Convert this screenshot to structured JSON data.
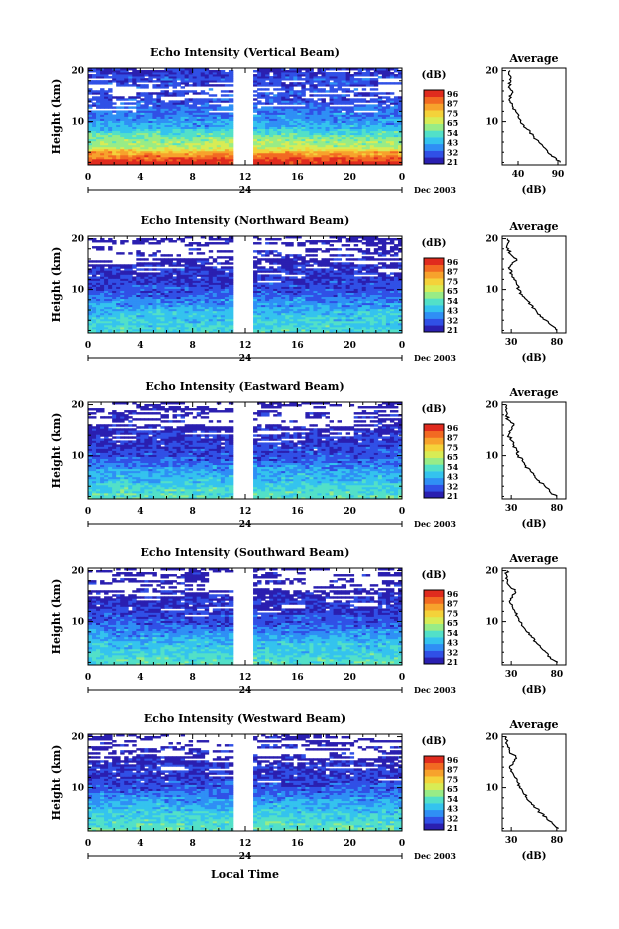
{
  "figure": {
    "xlabel": "Local Time",
    "date_label": "Dec 2003",
    "day_label": "24",
    "colorbar_unit": "(dB)",
    "colorbar_ticks": [
      "96",
      "87",
      "75",
      "65",
      "54",
      "43",
      "32",
      "21"
    ],
    "height_ticks": [
      "20",
      "10"
    ],
    "time_ticks": [
      "0",
      "4",
      "8",
      "12",
      "16",
      "20",
      "0"
    ],
    "ylabel": "Height (km)",
    "avg_title": "Average",
    "avg_unit": "(dB)",
    "colors": {
      "scale": [
        "#2a1fb0",
        "#3050e6",
        "#2f8ff5",
        "#34c3ee",
        "#52e0c8",
        "#98ec86",
        "#d8ec55",
        "#f4d23a",
        "#f7a22c",
        "#f26a22",
        "#e02b1e"
      ],
      "background": "#ffffff",
      "ink": "#000000"
    }
  },
  "chart_data": [
    {
      "type": "heatmap",
      "title": "Echo Intensity (Vertical Beam)",
      "xlabel": "",
      "ylabel": "Height (km)",
      "xlim": [
        0,
        24
      ],
      "ylim": [
        1.5,
        20.5
      ],
      "zlim": [
        21,
        96
      ],
      "zunit": "dB",
      "gap": [
        11.1,
        12.7
      ],
      "profile": [
        [
          2,
          95
        ],
        [
          3,
          85
        ],
        [
          4,
          78
        ],
        [
          5,
          62
        ],
        [
          6,
          60
        ],
        [
          7,
          55
        ],
        [
          8,
          50
        ],
        [
          9,
          42
        ],
        [
          10,
          40
        ],
        [
          11,
          37
        ],
        [
          12,
          35
        ],
        [
          13,
          33
        ],
        [
          14,
          30
        ],
        [
          15,
          28
        ],
        [
          16,
          30
        ],
        [
          17,
          27
        ],
        [
          18,
          31
        ],
        [
          19,
          28
        ],
        [
          20,
          26
        ]
      ],
      "average": {
        "title": "Average",
        "xlabel": "(dB)",
        "xticks": [
          "40",
          "90"
        ],
        "xlim": [
          20,
          100
        ],
        "ylim": [
          1.5,
          20.5
        ],
        "yticks": [
          "20",
          "10"
        ],
        "points": [
          [
            2,
            93
          ],
          [
            3,
            86
          ],
          [
            4,
            77
          ],
          [
            5,
            72
          ],
          [
            6,
            66
          ],
          [
            7,
            60
          ],
          [
            8,
            55
          ],
          [
            9,
            47
          ],
          [
            10,
            43
          ],
          [
            11,
            40
          ],
          [
            12,
            37
          ],
          [
            13,
            33
          ],
          [
            14,
            30
          ],
          [
            15,
            29
          ],
          [
            16,
            33
          ],
          [
            17,
            29
          ],
          [
            18,
            31
          ],
          [
            19,
            30
          ],
          [
            20,
            30
          ]
        ]
      }
    },
    {
      "type": "heatmap",
      "title": "Echo Intensity (Northward Beam)",
      "xlabel": "",
      "ylabel": "Height (km)",
      "xlim": [
        0,
        24
      ],
      "ylim": [
        1.5,
        20.5
      ],
      "zlim": [
        21,
        96
      ],
      "zunit": "dB",
      "gap": [
        11.1,
        12.7
      ],
      "profile": [
        [
          2,
          50
        ],
        [
          3,
          48
        ],
        [
          4,
          47
        ],
        [
          5,
          45
        ],
        [
          6,
          43
        ],
        [
          7,
          40
        ],
        [
          8,
          37
        ],
        [
          9,
          33
        ],
        [
          10,
          30
        ],
        [
          11,
          30
        ],
        [
          12,
          27
        ],
        [
          13,
          26
        ],
        [
          14,
          27
        ],
        [
          15,
          24
        ],
        [
          16,
          22
        ],
        [
          17,
          23
        ],
        [
          18,
          22
        ],
        [
          19,
          21
        ],
        [
          20,
          21
        ]
      ],
      "average": {
        "title": "Average",
        "xlabel": "(dB)",
        "xticks": [
          "30",
          "80"
        ],
        "xlim": [
          20,
          90
        ],
        "ylim": [
          1.5,
          20.5
        ],
        "yticks": [
          "20",
          "10"
        ],
        "points": [
          [
            2,
            80
          ],
          [
            3,
            74
          ],
          [
            4,
            68
          ],
          [
            5,
            62
          ],
          [
            6,
            57
          ],
          [
            7,
            52
          ],
          [
            8,
            47
          ],
          [
            9,
            42
          ],
          [
            10,
            38
          ],
          [
            11,
            36
          ],
          [
            12,
            33
          ],
          [
            13,
            31
          ],
          [
            14,
            28
          ],
          [
            15,
            31
          ],
          [
            16,
            36
          ],
          [
            17,
            29
          ],
          [
            18,
            27
          ],
          [
            19,
            26
          ],
          [
            20,
            26
          ]
        ]
      }
    },
    {
      "type": "heatmap",
      "title": "Echo Intensity (Eastward Beam)",
      "xlabel": "",
      "ylabel": "Height (km)",
      "xlim": [
        0,
        24
      ],
      "ylim": [
        1.5,
        20.5
      ],
      "zlim": [
        21,
        96
      ],
      "zunit": "dB",
      "gap": [
        11.1,
        12.7
      ],
      "profile": [
        [
          2,
          52
        ],
        [
          3,
          50
        ],
        [
          4,
          48
        ],
        [
          5,
          45
        ],
        [
          6,
          43
        ],
        [
          7,
          41
        ],
        [
          8,
          37
        ],
        [
          9,
          33
        ],
        [
          10,
          31
        ],
        [
          11,
          30
        ],
        [
          12,
          28
        ],
        [
          13,
          26
        ],
        [
          14,
          27
        ],
        [
          15,
          24
        ],
        [
          16,
          22
        ],
        [
          17,
          22
        ],
        [
          18,
          22
        ],
        [
          19,
          21
        ],
        [
          20,
          21
        ]
      ],
      "average": {
        "title": "Average",
        "xlabel": "(dB)",
        "xticks": [
          "30",
          "80"
        ],
        "xlim": [
          20,
          90
        ],
        "ylim": [
          1.5,
          20.5
        ],
        "yticks": [
          "20",
          "10"
        ],
        "points": [
          [
            2,
            80
          ],
          [
            3,
            72
          ],
          [
            4,
            67
          ],
          [
            5,
            61
          ],
          [
            6,
            56
          ],
          [
            7,
            51
          ],
          [
            8,
            46
          ],
          [
            9,
            42
          ],
          [
            10,
            38
          ],
          [
            11,
            36
          ],
          [
            12,
            33
          ],
          [
            13,
            30
          ],
          [
            14,
            27
          ],
          [
            15,
            30
          ],
          [
            16,
            33
          ],
          [
            17,
            27
          ],
          [
            18,
            25
          ],
          [
            19,
            24
          ],
          [
            20,
            25
          ]
        ]
      }
    },
    {
      "type": "heatmap",
      "title": "Echo Intensity (Southward Beam)",
      "xlabel": "",
      "ylabel": "Height (km)",
      "xlim": [
        0,
        24
      ],
      "ylim": [
        1.5,
        20.5
      ],
      "zlim": [
        21,
        96
      ],
      "zunit": "dB",
      "gap": [
        11.1,
        12.7
      ],
      "profile": [
        [
          2,
          52
        ],
        [
          3,
          50
        ],
        [
          4,
          48
        ],
        [
          5,
          46
        ],
        [
          6,
          44
        ],
        [
          7,
          41
        ],
        [
          8,
          38
        ],
        [
          9,
          34
        ],
        [
          10,
          31
        ],
        [
          11,
          30
        ],
        [
          12,
          28
        ],
        [
          13,
          26
        ],
        [
          14,
          27
        ],
        [
          15,
          24
        ],
        [
          16,
          22
        ],
        [
          17,
          22
        ],
        [
          18,
          22
        ],
        [
          19,
          21
        ],
        [
          20,
          21
        ]
      ],
      "average": {
        "title": "Average",
        "xlabel": "(dB)",
        "xticks": [
          "30",
          "80"
        ],
        "xlim": [
          20,
          90
        ],
        "ylim": [
          1.5,
          20.5
        ],
        "yticks": [
          "20",
          "10"
        ],
        "points": [
          [
            2,
            81
          ],
          [
            3,
            73
          ],
          [
            4,
            68
          ],
          [
            5,
            62
          ],
          [
            6,
            57
          ],
          [
            7,
            52
          ],
          [
            8,
            47
          ],
          [
            9,
            43
          ],
          [
            10,
            39
          ],
          [
            11,
            37
          ],
          [
            12,
            34
          ],
          [
            13,
            31
          ],
          [
            14,
            28
          ],
          [
            15,
            31
          ],
          [
            16,
            34
          ],
          [
            17,
            28
          ],
          [
            18,
            26
          ],
          [
            19,
            25
          ],
          [
            20,
            25
          ]
        ]
      }
    },
    {
      "type": "heatmap",
      "title": "Echo Intensity (Westward Beam)",
      "xlabel": "",
      "ylabel": "Height (km)",
      "xlim": [
        0,
        24
      ],
      "ylim": [
        1.5,
        20.5
      ],
      "zlim": [
        21,
        96
      ],
      "zunit": "dB",
      "gap": [
        11.1,
        12.7
      ],
      "profile": [
        [
          2,
          53
        ],
        [
          3,
          51
        ],
        [
          4,
          49
        ],
        [
          5,
          47
        ],
        [
          6,
          44
        ],
        [
          7,
          41
        ],
        [
          8,
          38
        ],
        [
          9,
          34
        ],
        [
          10,
          31
        ],
        [
          11,
          30
        ],
        [
          12,
          28
        ],
        [
          13,
          26
        ],
        [
          14,
          28
        ],
        [
          15,
          24
        ],
        [
          16,
          22
        ],
        [
          17,
          23
        ],
        [
          18,
          22
        ],
        [
          19,
          21
        ],
        [
          20,
          21
        ]
      ],
      "average": {
        "title": "Average",
        "xlabel": "(dB)",
        "xticks": [
          "30",
          "80"
        ],
        "xlim": [
          20,
          90
        ],
        "ylim": [
          1.5,
          20.5
        ],
        "yticks": [
          "20",
          "10"
        ],
        "points": [
          [
            2,
            82
          ],
          [
            3,
            75
          ],
          [
            4,
            69
          ],
          [
            5,
            63
          ],
          [
            6,
            57
          ],
          [
            7,
            52
          ],
          [
            8,
            47
          ],
          [
            9,
            43
          ],
          [
            10,
            39
          ],
          [
            11,
            37
          ],
          [
            12,
            34
          ],
          [
            13,
            31
          ],
          [
            14,
            28
          ],
          [
            15,
            32
          ],
          [
            16,
            35
          ],
          [
            17,
            28
          ],
          [
            18,
            26
          ],
          [
            19,
            25
          ],
          [
            20,
            25
          ]
        ]
      }
    }
  ]
}
